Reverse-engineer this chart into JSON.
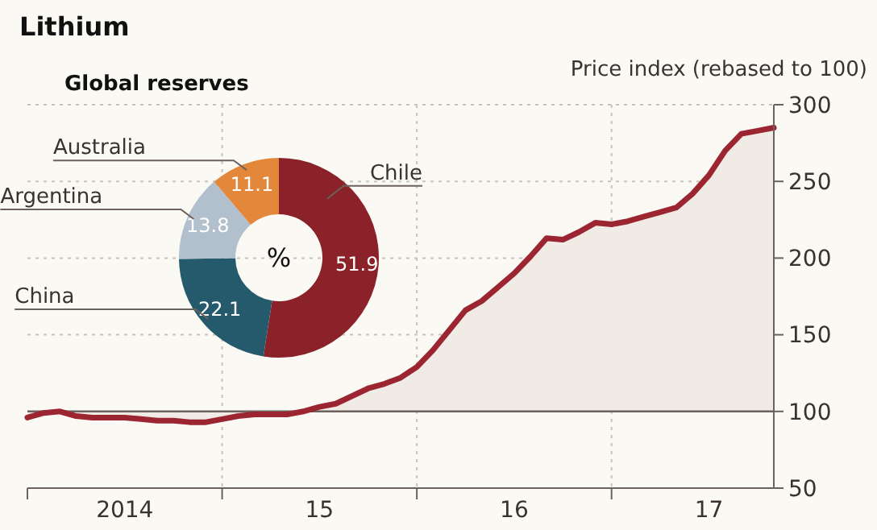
{
  "chart_data": [
    {
      "type": "area",
      "title": "Lithium",
      "ylabel": "Price index (rebased to 100)",
      "categories": [
        null,
        null,
        null,
        null,
        null,
        null,
        "2014",
        null,
        null,
        null,
        null,
        null,
        null,
        null,
        null,
        null,
        null,
        null,
        "15",
        null,
        null,
        null,
        null,
        null,
        null,
        null,
        null,
        null,
        null,
        null,
        "16",
        null,
        null,
        null,
        null,
        null,
        null,
        null,
        null,
        null,
        null,
        null,
        "17",
        null,
        null,
        null,
        null
      ],
      "ylim": [
        50,
        300
      ],
      "yticks": [
        50,
        100,
        150,
        200,
        250,
        300
      ],
      "grid": true,
      "ref_lines": [
        {
          "axis": "y",
          "value": 100,
          "label": null,
          "color": "#6b625c"
        }
      ],
      "series": [
        {
          "color": "#9b2530",
          "values": [
            96,
            99,
            100,
            97,
            96,
            96,
            96,
            95,
            94,
            94,
            93,
            93,
            95,
            97,
            98,
            98,
            98,
            100,
            103,
            105,
            110,
            115,
            118,
            122,
            129,
            140,
            153,
            166,
            172,
            181,
            190,
            201,
            213,
            212,
            217,
            223,
            222,
            224,
            227,
            230,
            233,
            242,
            254,
            270,
            281,
            283,
            285
          ]
        }
      ]
    },
    {
      "type": "donut",
      "title": "Global reserves",
      "annotations": [
        "%"
      ],
      "data_labels": true,
      "categories": [
        "Chile",
        "China",
        "Argentina",
        "Australia"
      ],
      "values": [
        51.9,
        22.1,
        13.8,
        11.1
      ],
      "colors": [
        "#8b2229",
        "#245a6b",
        "#b2bfcc",
        "#e3883a"
      ]
    }
  ]
}
